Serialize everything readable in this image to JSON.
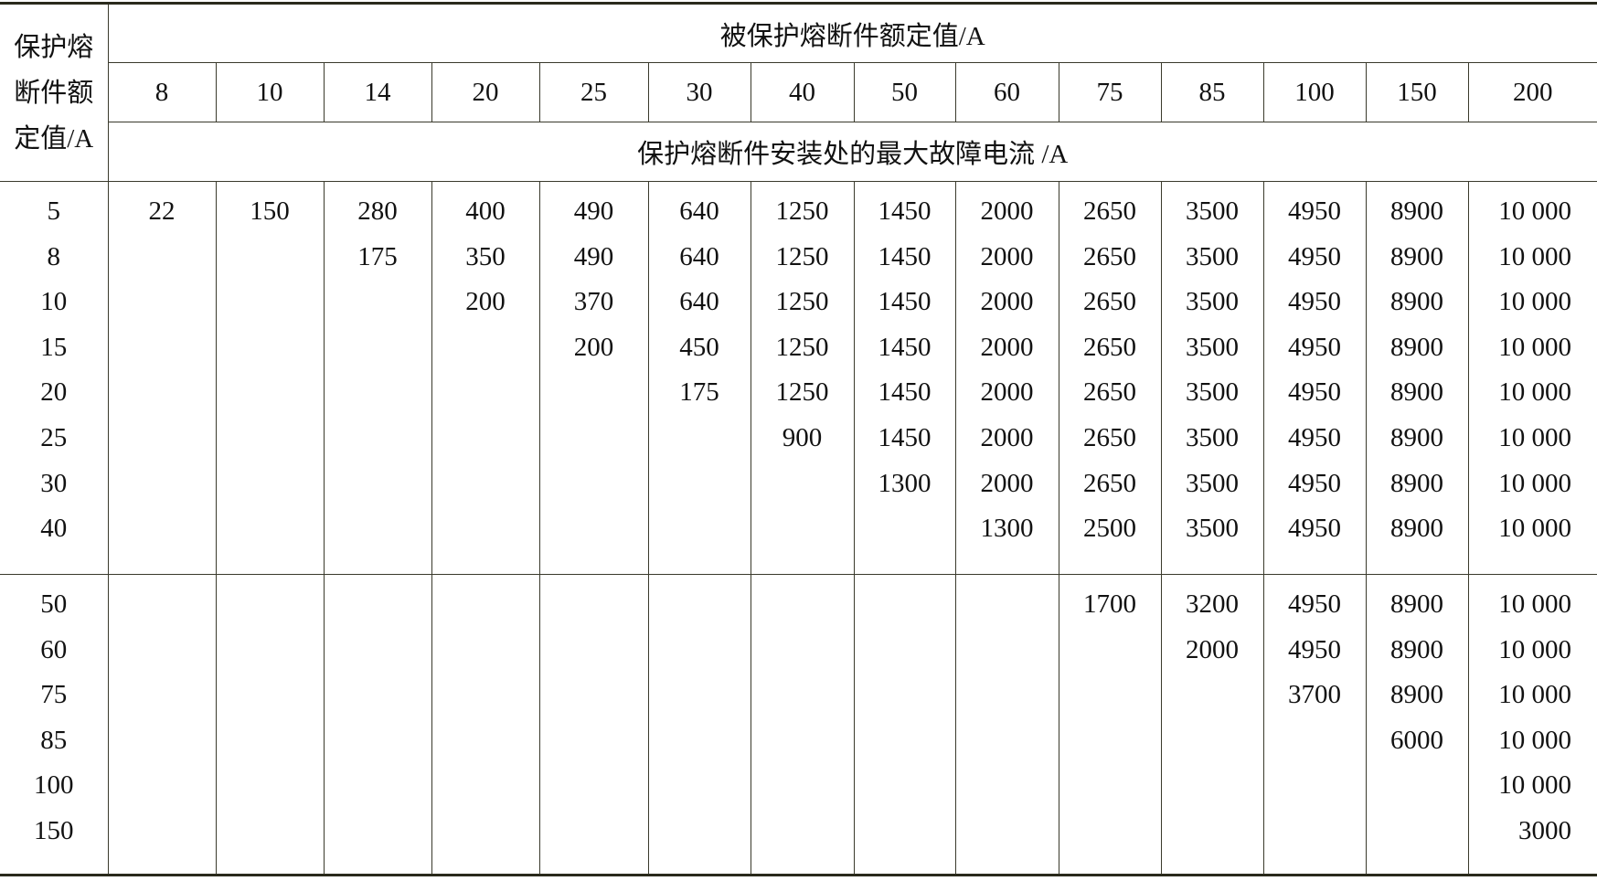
{
  "table": {
    "row_header_lines": [
      "保护熔",
      "断件额",
      "定值/A"
    ],
    "top_header": "被保护熔断件额定值/A",
    "sub_header": "保护熔断件安装处的最大故障电流 /A",
    "columns": [
      "8",
      "10",
      "14",
      "20",
      "25",
      "30",
      "40",
      "50",
      "60",
      "75",
      "85",
      "100",
      "150",
      "200"
    ],
    "groups": [
      {
        "row_labels": [
          "5",
          "8",
          "10",
          "15",
          "20",
          "25",
          "30",
          "40"
        ],
        "cells": [
          [
            "22"
          ],
          [
            "150"
          ],
          [
            "280",
            "175"
          ],
          [
            "400",
            "350",
            "200"
          ],
          [
            "490",
            "490",
            "370",
            "200"
          ],
          [
            "640",
            "640",
            "640",
            "450",
            "175"
          ],
          [
            "1250",
            "1250",
            "1250",
            "1250",
            "1250",
            "900"
          ],
          [
            "1450",
            "1450",
            "1450",
            "1450",
            "1450",
            "1450",
            "1300"
          ],
          [
            "2000",
            "2000",
            "2000",
            "2000",
            "2000",
            "2000",
            "2000",
            "1300"
          ],
          [
            "2650",
            "2650",
            "2650",
            "2650",
            "2650",
            "2650",
            "2650",
            "2500"
          ],
          [
            "3500",
            "3500",
            "3500",
            "3500",
            "3500",
            "3500",
            "3500",
            "3500"
          ],
          [
            "4950",
            "4950",
            "4950",
            "4950",
            "4950",
            "4950",
            "4950",
            "4950"
          ],
          [
            "8900",
            "8900",
            "8900",
            "8900",
            "8900",
            "8900",
            "8900",
            "8900"
          ],
          [
            "10 000",
            "10 000",
            "10 000",
            "10 000",
            "10 000",
            "10 000",
            "10 000",
            "10 000"
          ]
        ]
      },
      {
        "row_labels": [
          "50",
          "60",
          "75",
          "85",
          "100",
          "150"
        ],
        "cells": [
          [],
          [],
          [],
          [],
          [],
          [],
          [],
          [],
          [],
          [
            "1700"
          ],
          [
            "3200",
            "2000"
          ],
          [
            "4950",
            "4950",
            "3700"
          ],
          [
            "8900",
            "8900",
            "8900",
            "6000"
          ],
          [
            "10 000",
            "10 000",
            "10 000",
            "10 000",
            "10 000",
            "3000"
          ]
        ]
      }
    ]
  }
}
